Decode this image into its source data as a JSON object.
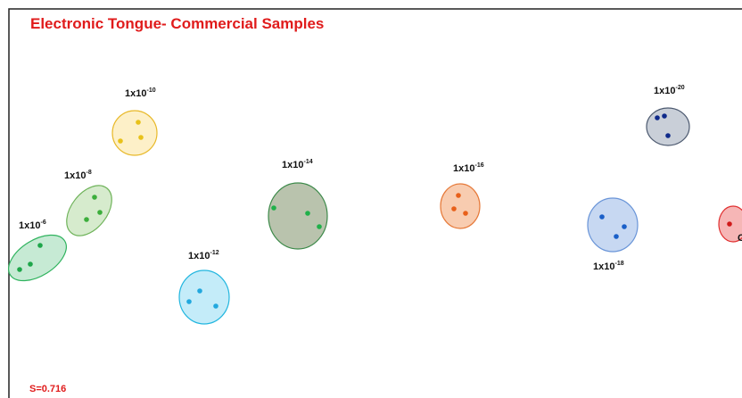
{
  "title": "Electronic Tongue- Commercial Samples",
  "clusters": [
    {
      "base": "1x10",
      "exp": "-6"
    },
    {
      "base": "1x10",
      "exp": "-8"
    },
    {
      "base": "1x10",
      "exp": "-10"
    },
    {
      "base": "1x10",
      "exp": "-12"
    },
    {
      "base": "1x10",
      "exp": "-14"
    },
    {
      "base": "1x10",
      "exp": "-16"
    },
    {
      "base": "1x10",
      "exp": "-18"
    },
    {
      "base": "1x10",
      "exp": "-20"
    },
    {
      "base": "C"
    }
  ],
  "footer": "S=0.716"
}
